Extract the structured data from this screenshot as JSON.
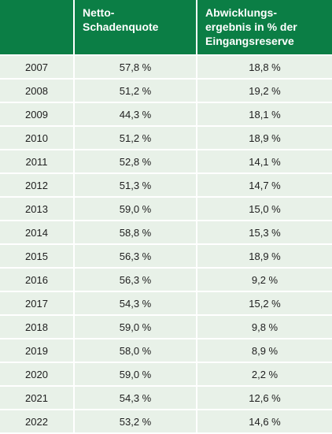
{
  "table": {
    "headers": [
      "",
      "Netto-\nSchadenquote",
      "Abwicklungs-\nergebnis in % der\nEingangsreserve"
    ],
    "rows": [
      [
        "2007",
        "57,8 %",
        "18,8 %"
      ],
      [
        "2008",
        "51,2 %",
        "19,2 %"
      ],
      [
        "2009",
        "44,3 %",
        "18,1 %"
      ],
      [
        "2010",
        "51,2 %",
        "18,9 %"
      ],
      [
        "2011",
        "52,8 %",
        "14,1 %"
      ],
      [
        "2012",
        "51,3 %",
        "14,7 %"
      ],
      [
        "2013",
        "59,0 %",
        "15,0 %"
      ],
      [
        "2014",
        "58,8 %",
        "15,3 %"
      ],
      [
        "2015",
        "56,3 %",
        "18,9 %"
      ],
      [
        "2016",
        "56,3 %",
        "9,2 %"
      ],
      [
        "2017",
        "54,3 %",
        "15,2 %"
      ],
      [
        "2018",
        "59,0 %",
        "9,8 %"
      ],
      [
        "2019",
        "58,0 %",
        "8,9 %"
      ],
      [
        "2020",
        "59,0 %",
        "2,2 %"
      ],
      [
        "2021",
        "54,3 %",
        "12,6 %"
      ],
      [
        "2022",
        "53,2 %",
        "14,6 %"
      ]
    ]
  },
  "colors": {
    "header_bg": "#0b7e45",
    "row_bg": "#e8f1e8"
  }
}
